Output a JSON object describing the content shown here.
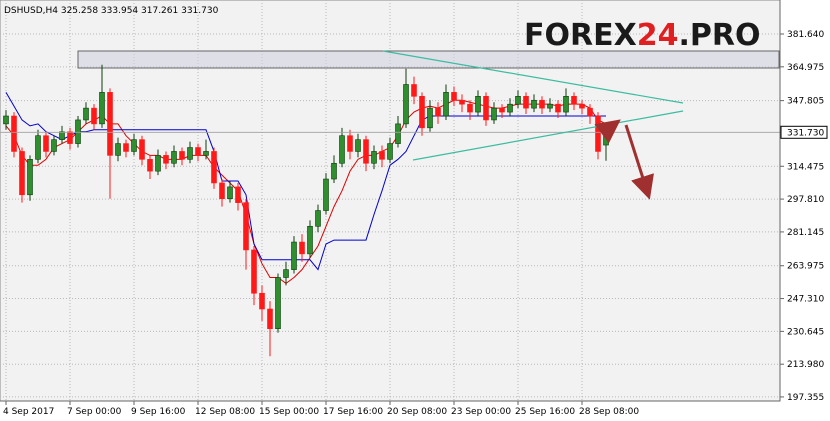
{
  "chart_data": {
    "type": "candlestick",
    "header": "DSHUSD,H4  325.258 333.954 317.261 331.730",
    "logo": [
      "FOREX",
      "24",
      ".PRO"
    ],
    "grid": true,
    "up_color": "#2f8f2f",
    "down_color": "#ff1a1a",
    "ylim": [
      195.8,
      398.9
    ],
    "yticks": [
      {
        "value": 381.64,
        "label": "381.640"
      },
      364.975,
      347.805,
      314.475,
      {
        "value": 297.81,
        "label": "297.810"
      },
      281.145,
      263.975,
      {
        "value": 247.31,
        "label": "247.310"
      },
      230.645,
      {
        "value": 213.98,
        "label": "213.980"
      },
      197.355
    ],
    "xlim": [
      -0.75,
      96.75
    ],
    "xticks": [
      {
        "value": 0,
        "label": "4 Sep 2017"
      },
      {
        "value": 8,
        "label": "7 Sep 00:00"
      },
      {
        "value": 16,
        "label": "9 Sep 16:00"
      },
      {
        "value": 24,
        "label": "12 Sep 08:00"
      },
      {
        "value": 32,
        "label": "15 Sep 00:00"
      },
      {
        "value": 40,
        "label": "17 Sep 16:00"
      },
      {
        "value": 48,
        "label": "20 Sep 08:00"
      },
      {
        "value": 56,
        "label": "23 Sep 00:00"
      },
      {
        "value": 64,
        "label": "25 Sep 16:00"
      },
      {
        "value": 72,
        "label": "28 Sep 08:00"
      }
    ],
    "last_price": {
      "value": 331.73,
      "label": "331.730"
    },
    "open": [
      336,
      340,
      322,
      300,
      318,
      330,
      322,
      328,
      332,
      326,
      338,
      344,
      336,
      352,
      320,
      326,
      322,
      328,
      318,
      312,
      320,
      316,
      322,
      318,
      324,
      320,
      322,
      306,
      298,
      304,
      296,
      272,
      250,
      242,
      232,
      258,
      262,
      276,
      270,
      284,
      292,
      308,
      316,
      330,
      322,
      328,
      316,
      322,
      318,
      326,
      336,
      356,
      350,
      334,
      344,
      340,
      352,
      348,
      346,
      342,
      350,
      338,
      344,
      342,
      346,
      350,
      344,
      348,
      344,
      346,
      342,
      350,
      346,
      344,
      340,
      325.258
    ],
    "high": [
      343,
      342,
      324,
      320,
      333,
      332,
      330,
      335,
      334,
      340,
      347,
      346,
      366,
      354,
      329,
      328,
      331,
      330,
      320,
      323,
      322,
      325,
      324,
      327,
      326,
      328,
      324,
      308,
      307,
      306,
      298,
      274,
      254,
      246,
      260,
      266,
      279,
      280,
      287,
      295,
      311,
      320,
      334,
      333,
      331,
      330,
      325,
      325,
      329,
      340,
      364,
      360,
      352,
      348,
      347,
      356,
      355,
      351,
      348,
      353,
      352,
      347,
      346,
      349,
      353,
      352,
      351,
      350,
      349,
      348,
      354,
      352,
      348,
      346,
      342,
      333.954
    ],
    "low": [
      333,
      319,
      296,
      297,
      316,
      319,
      320,
      326,
      323,
      324,
      336,
      333,
      334,
      298,
      317,
      319,
      320,
      315,
      308,
      310,
      313,
      314,
      315,
      316,
      317,
      318,
      303,
      294,
      296,
      292,
      262,
      244,
      236,
      218,
      230,
      254,
      260,
      266,
      268,
      281,
      290,
      306,
      314,
      318,
      319,
      312,
      313,
      314,
      316,
      324,
      334,
      346,
      330,
      332,
      336,
      338,
      345,
      342,
      338,
      340,
      335,
      336,
      339,
      340,
      344,
      341,
      342,
      341,
      342,
      339,
      340,
      343,
      341,
      336,
      318,
      317.261
    ],
    "close": [
      340,
      322,
      300,
      318,
      330,
      322,
      328,
      332,
      326,
      338,
      344,
      336,
      352,
      320,
      326,
      322,
      328,
      318,
      312,
      320,
      316,
      322,
      318,
      324,
      320,
      322,
      306,
      298,
      304,
      296,
      272,
      250,
      242,
      232,
      258,
      262,
      276,
      270,
      284,
      292,
      308,
      316,
      330,
      322,
      328,
      316,
      322,
      318,
      326,
      336,
      356,
      350,
      334,
      344,
      340,
      352,
      348,
      346,
      342,
      350,
      338,
      344,
      342,
      346,
      350,
      344,
      348,
      344,
      346,
      342,
      350,
      346,
      344,
      340,
      322,
      331.73
    ],
    "overlays": [
      {
        "color": "#e00000",
        "values": [
          335,
          330,
          320,
          315,
          315,
          318,
          324,
          326,
          328,
          332,
          336,
          338,
          340,
          336,
          336,
          330,
          326,
          322,
          320,
          320,
          318,
          318,
          318,
          320,
          320,
          320,
          314,
          310,
          306,
          302,
          290,
          275,
          265,
          258,
          258,
          255,
          258,
          262,
          268,
          274,
          284,
          294,
          302,
          312,
          318,
          320,
          320,
          322,
          324,
          330,
          338,
          342,
          344,
          345,
          344,
          346,
          348,
          348,
          347,
          346,
          345,
          344,
          344,
          345,
          346,
          346,
          346,
          346,
          346,
          345,
          346,
          346,
          346,
          344,
          338,
          336
        ]
      },
      {
        "color": "#0000d0",
        "values": [
          352,
          345,
          338,
          335,
          336,
          332,
          330,
          328,
          330,
          332,
          332,
          333,
          333,
          333,
          333,
          333,
          333,
          333,
          333,
          333,
          333,
          333,
          333,
          333,
          333,
          333,
          322,
          307,
          307,
          307,
          300,
          275,
          267,
          267,
          267,
          267,
          267,
          267,
          267,
          262,
          275,
          277,
          277,
          277,
          277,
          277,
          290,
          302,
          315,
          318,
          322,
          330,
          338,
          340,
          340,
          340,
          340,
          340,
          340,
          340,
          340,
          340,
          340,
          340,
          340,
          340,
          340,
          340,
          340,
          340,
          340,
          340,
          340,
          340,
          340,
          340
        ]
      }
    ]
  }
}
